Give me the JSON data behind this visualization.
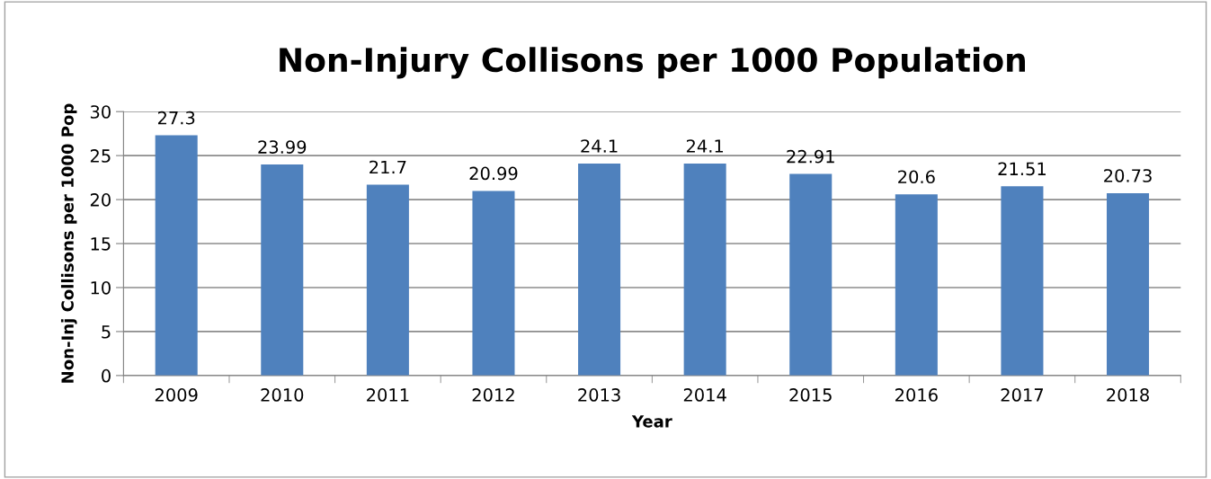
{
  "chart_data": {
    "type": "bar",
    "title": "Non-Injury Collisons per 1000 Population",
    "xlabel": "Year",
    "ylabel": "Non-Inj Collisons per 1000 Pop",
    "categories": [
      "2009",
      "2010",
      "2011",
      "2012",
      "2013",
      "2014",
      "2015",
      "2016",
      "2017",
      "2018"
    ],
    "values": [
      27.3,
      23.99,
      21.7,
      20.99,
      24.1,
      24.1,
      22.91,
      20.6,
      21.51,
      20.73
    ],
    "color": "#4f81bd",
    "ylim": [
      0,
      30
    ],
    "yticks": [
      0,
      5,
      10,
      15,
      20,
      25,
      30
    ],
    "grid": "y",
    "data_labels": true,
    "legend": false
  }
}
